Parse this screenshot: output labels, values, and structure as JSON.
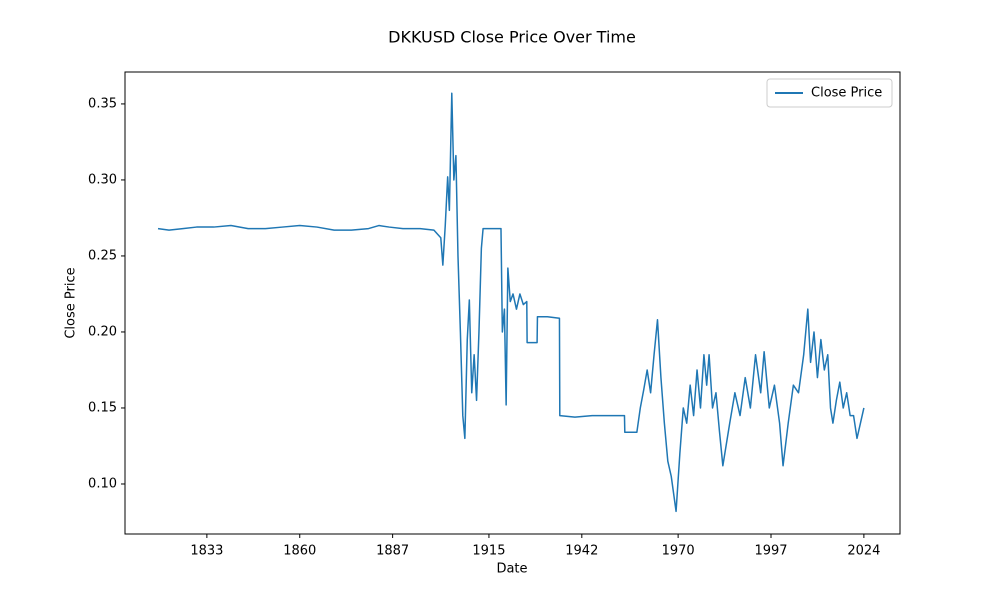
{
  "chart_data": {
    "type": "line",
    "title": "DKKUSD Close Price Over Time",
    "x_label": "Date",
    "y_label": "Close Price",
    "x": [
      1818.8,
      1822,
      1826,
      1830,
      1835,
      1840,
      1845,
      1850,
      1855,
      1860,
      1865,
      1870,
      1875,
      1880,
      1883,
      1886,
      1890,
      1895,
      1899,
      1901,
      1901.6,
      1902.3,
      1903,
      1903.5,
      1904.2,
      1904.8,
      1905.4,
      1906,
      1906.7,
      1907.4,
      1908,
      1908.7,
      1909.3,
      1910,
      1910.7,
      1911.4,
      1912.1,
      1912.8,
      1913.3,
      1916,
      1918.5,
      1918.9,
      1919.5,
      1920,
      1920.5,
      1921.2,
      1922,
      1923,
      1924,
      1925,
      1926,
      1926.1,
      1929,
      1929.1,
      1932,
      1935.5,
      1935.6,
      1940,
      1945,
      1950,
      1954.4,
      1954.5,
      1958,
      1959,
      1960,
      1961,
      1962,
      1963,
      1964,
      1965,
      1966,
      1967,
      1968,
      1969.4,
      1970.5,
      1971.5,
      1972.5,
      1973.5,
      1974.5,
      1975.5,
      1976.5,
      1977.5,
      1978.3,
      1979,
      1980,
      1981,
      1982,
      1983,
      1985,
      1986.5,
      1988,
      1989.5,
      1991,
      1992.5,
      1994,
      1995,
      1996.5,
      1998,
      1999.5,
      2000.5,
      2002,
      2003.5,
      2005,
      2006.5,
      2007.7,
      2008.5,
      2009.5,
      2010.5,
      2011.5,
      2012.5,
      2013.5,
      2014.3,
      2015,
      2016,
      2017,
      2018,
      2019,
      2020,
      2021,
      2022,
      2023,
      2024
    ],
    "series": [
      {
        "name": "Close Price",
        "color": "#1f77b4",
        "values": [
          0.268,
          0.267,
          0.268,
          0.269,
          0.269,
          0.27,
          0.268,
          0.268,
          0.269,
          0.27,
          0.269,
          0.267,
          0.267,
          0.268,
          0.27,
          0.269,
          0.268,
          0.268,
          0.267,
          0.262,
          0.244,
          0.27,
          0.302,
          0.28,
          0.357,
          0.3,
          0.316,
          0.25,
          0.2,
          0.145,
          0.13,
          0.195,
          0.221,
          0.16,
          0.185,
          0.155,
          0.2,
          0.255,
          0.268,
          0.268,
          0.268,
          0.2,
          0.215,
          0.152,
          0.242,
          0.22,
          0.225,
          0.215,
          0.225,
          0.218,
          0.22,
          0.193,
          0.193,
          0.21,
          0.21,
          0.209,
          0.145,
          0.144,
          0.145,
          0.145,
          0.145,
          0.134,
          0.134,
          0.15,
          0.162,
          0.175,
          0.16,
          0.185,
          0.208,
          0.17,
          0.14,
          0.115,
          0.105,
          0.082,
          0.12,
          0.15,
          0.14,
          0.165,
          0.145,
          0.175,
          0.15,
          0.185,
          0.165,
          0.185,
          0.15,
          0.16,
          0.135,
          0.112,
          0.14,
          0.16,
          0.145,
          0.17,
          0.15,
          0.185,
          0.16,
          0.187,
          0.15,
          0.165,
          0.14,
          0.112,
          0.14,
          0.165,
          0.16,
          0.185,
          0.215,
          0.18,
          0.2,
          0.17,
          0.195,
          0.175,
          0.185,
          0.15,
          0.14,
          0.155,
          0.167,
          0.15,
          0.16,
          0.145,
          0.145,
          0.13,
          0.14,
          0.15
        ]
      }
    ],
    "xlim": [
      1809.2,
      2034.5
    ],
    "xticks": [
      1833,
      1860,
      1887,
      1915,
      1942,
      1970,
      1997,
      2024
    ],
    "ylim": [
      0.0671,
      0.371
    ],
    "yticks": [
      {
        "value": 0.1,
        "label": "0.10"
      },
      {
        "value": 0.15,
        "label": "0.15"
      },
      {
        "value": 0.2,
        "label": "0.20"
      },
      {
        "value": 0.25,
        "label": "0.25"
      },
      {
        "value": 0.3,
        "label": "0.30"
      },
      {
        "value": 0.35,
        "label": "0.35"
      }
    ],
    "grid": false,
    "legend": "upper right"
  }
}
